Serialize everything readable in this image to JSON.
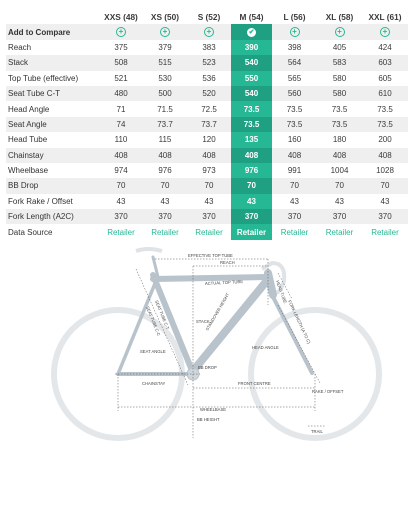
{
  "table": {
    "sizes": [
      "XXS (48)",
      "XS (50)",
      "S (52)",
      "M (54)",
      "L (56)",
      "XL (58)",
      "XXL (61)"
    ],
    "add_to_compare_label": "Add to Compare",
    "rows": [
      {
        "label": "Reach",
        "values": [
          "375",
          "379",
          "383",
          "390",
          "398",
          "405",
          "424"
        ]
      },
      {
        "label": "Stack",
        "values": [
          "508",
          "515",
          "523",
          "540",
          "564",
          "583",
          "603"
        ]
      },
      {
        "label": "Top Tube (effective)",
        "values": [
          "521",
          "530",
          "536",
          "550",
          "565",
          "580",
          "605"
        ]
      },
      {
        "label": "Seat Tube C-T",
        "values": [
          "480",
          "500",
          "520",
          "540",
          "560",
          "580",
          "610"
        ]
      },
      {
        "label": "Head Angle",
        "values": [
          "71",
          "71.5",
          "72.5",
          "73.5",
          "73.5",
          "73.5",
          "73.5"
        ]
      },
      {
        "label": "Seat Angle",
        "values": [
          "74",
          "73.7",
          "73.7",
          "73.5",
          "73.5",
          "73.5",
          "73.5"
        ]
      },
      {
        "label": "Head Tube",
        "values": [
          "110",
          "115",
          "120",
          "135",
          "160",
          "180",
          "200"
        ]
      },
      {
        "label": "Chainstay",
        "values": [
          "408",
          "408",
          "408",
          "408",
          "408",
          "408",
          "408"
        ]
      },
      {
        "label": "Wheelbase",
        "values": [
          "974",
          "976",
          "973",
          "976",
          "991",
          "1004",
          "1028"
        ]
      },
      {
        "label": "BB Drop",
        "values": [
          "70",
          "70",
          "70",
          "70",
          "70",
          "70",
          "70"
        ]
      },
      {
        "label": "Fork Rake / Offset",
        "values": [
          "43",
          "43",
          "43",
          "43",
          "43",
          "43",
          "43"
        ]
      },
      {
        "label": "Fork Length (A2C)",
        "values": [
          "370",
          "370",
          "370",
          "370",
          "370",
          "370",
          "370"
        ]
      }
    ],
    "data_source_label": "Data Source",
    "data_source_values": [
      "Retailer",
      "Retailer",
      "Retailer",
      "Retailer",
      "Retailer",
      "Retailer",
      "Retailer"
    ],
    "selected_index": 3
  },
  "diagram": {
    "labels": {
      "effective_top_tube": "EFFECTIVE TOP TUBE",
      "reach": "REACH",
      "actual_top_tube": "ACTUAL TOP TUBE",
      "stack": "STACK",
      "head_tube": "HEAD TUBE",
      "head_angle": "HEAD ANGLE",
      "seat_angle": "SEAT ANGLE",
      "seat_tube_ct": "SEAT TUBE C-T",
      "seat_tube_ct_2": "SEAT TUBE C-C",
      "fork_length": "FORK LENGTH (A TO C)",
      "chainstay": "CHAINSTAY",
      "bb_drop": "BB DROP",
      "front_centre": "FRONT CENTRE",
      "wheelbase": "WHEELBASE",
      "bb_height": "BB HEIGHT",
      "rake_offset": "RAKE / OFFSET",
      "trail": "TRAIL",
      "standover": "STANDOVER HEIGHT"
    }
  },
  "colors": {
    "accent": "#26b894",
    "row_alt": "#efefef",
    "frame": "#b9c3cc",
    "wheel": "#e3e6e9"
  }
}
